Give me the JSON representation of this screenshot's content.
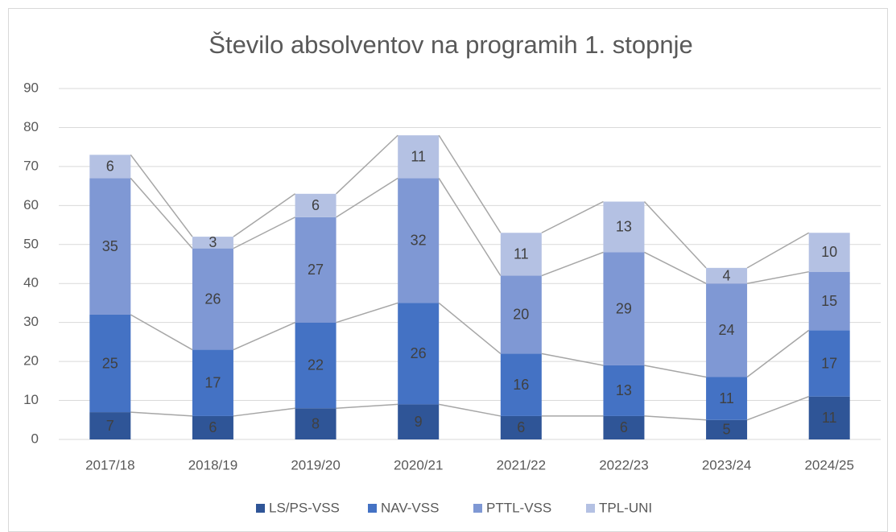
{
  "chart_data": {
    "type": "stacked_bar",
    "title": "Število absolventov na programih 1. stopnje",
    "categories": [
      "2017/18",
      "2018/19",
      "2019/20",
      "2020/21",
      "2021/22",
      "2022/23",
      "2023/24",
      "2024/25"
    ],
    "series": [
      {
        "name": "LS/PS-VSS",
        "color": "#2f5597",
        "values": [
          7,
          6,
          8,
          9,
          6,
          6,
          5,
          11
        ]
      },
      {
        "name": "NAV-VSS",
        "color": "#4472c4",
        "values": [
          25,
          17,
          22,
          26,
          16,
          13,
          11,
          17
        ]
      },
      {
        "name": "PTTL-VSS",
        "color": "#7f98d4",
        "values": [
          35,
          26,
          27,
          32,
          20,
          29,
          24,
          15
        ]
      },
      {
        "name": "TPL-UNI",
        "color": "#b4c1e3",
        "values": [
          6,
          3,
          6,
          11,
          11,
          13,
          4,
          10
        ]
      }
    ],
    "ylim": [
      0,
      90
    ],
    "yticks": [
      0,
      10,
      20,
      30,
      40,
      50,
      60,
      70,
      80,
      90
    ],
    "grid": true,
    "legend": "bottom"
  }
}
